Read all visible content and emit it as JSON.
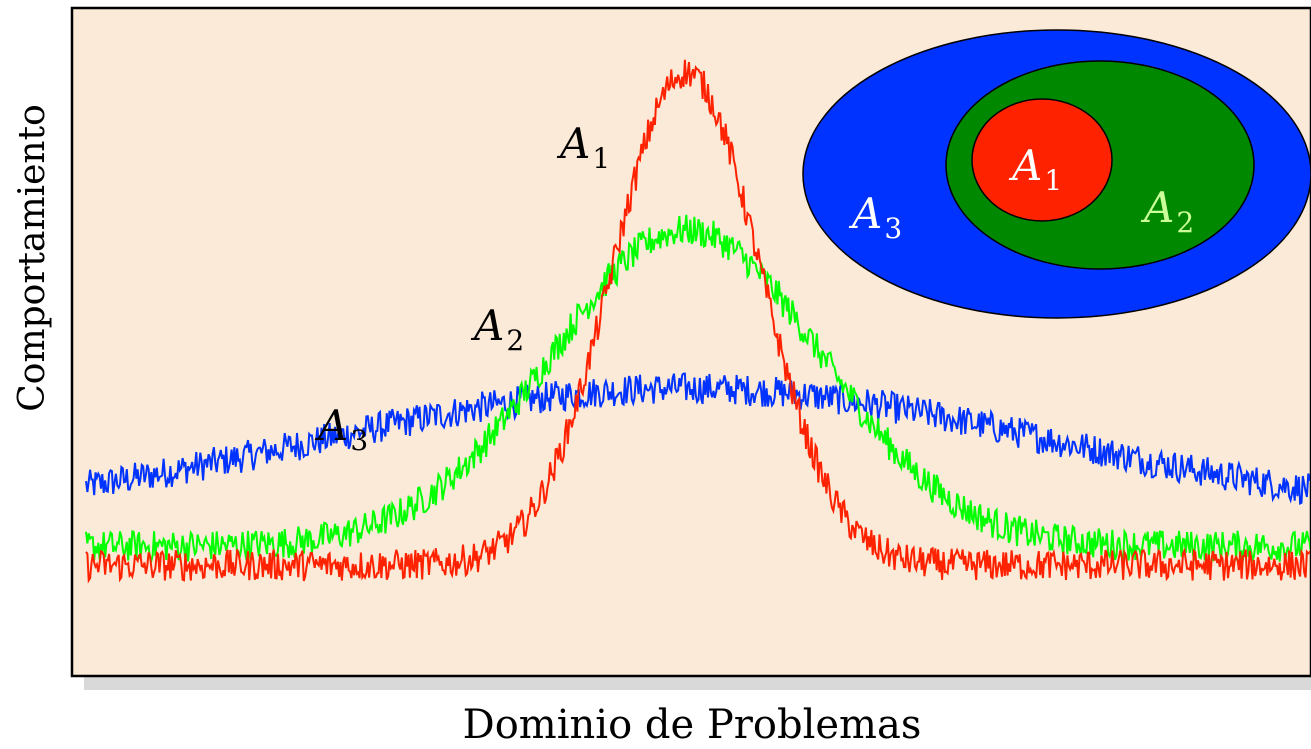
{
  "chart_data": {
    "type": "line",
    "title": "",
    "xlabel": "Dominio de Problemas",
    "ylabel": "Comportamiento",
    "grid": false,
    "xlim": [
      0,
      1
    ],
    "ylim": [
      0,
      1
    ],
    "background_color": "#fbead8",
    "series": [
      {
        "name": "A",
        "subscript": "1",
        "color": "#ff2200",
        "baseline": 0.15,
        "peak": 0.93,
        "center": 0.49,
        "width": 0.06,
        "noise": 0.025
      },
      {
        "name": "A",
        "subscript": "2",
        "color": "#00ff00",
        "baseline": 0.18,
        "peak": 0.68,
        "center": 0.49,
        "width": 0.11,
        "noise": 0.025
      },
      {
        "name": "A",
        "subscript": "3",
        "color": "#0033ff",
        "baseline": 0.22,
        "peak": 0.43,
        "center": 0.49,
        "width": 0.3,
        "noise": 0.025
      }
    ],
    "inset": {
      "type": "nested-sets",
      "sets": [
        {
          "name": "A",
          "subscript": "3",
          "fill": "#0033ff",
          "text_color": "#ffffff"
        },
        {
          "name": "A",
          "subscript": "2",
          "fill": "#008800",
          "text_color": "#ccff99"
        },
        {
          "name": "A",
          "subscript": "1",
          "fill": "#ff2200",
          "text_color": "#ffffff"
        }
      ]
    }
  }
}
